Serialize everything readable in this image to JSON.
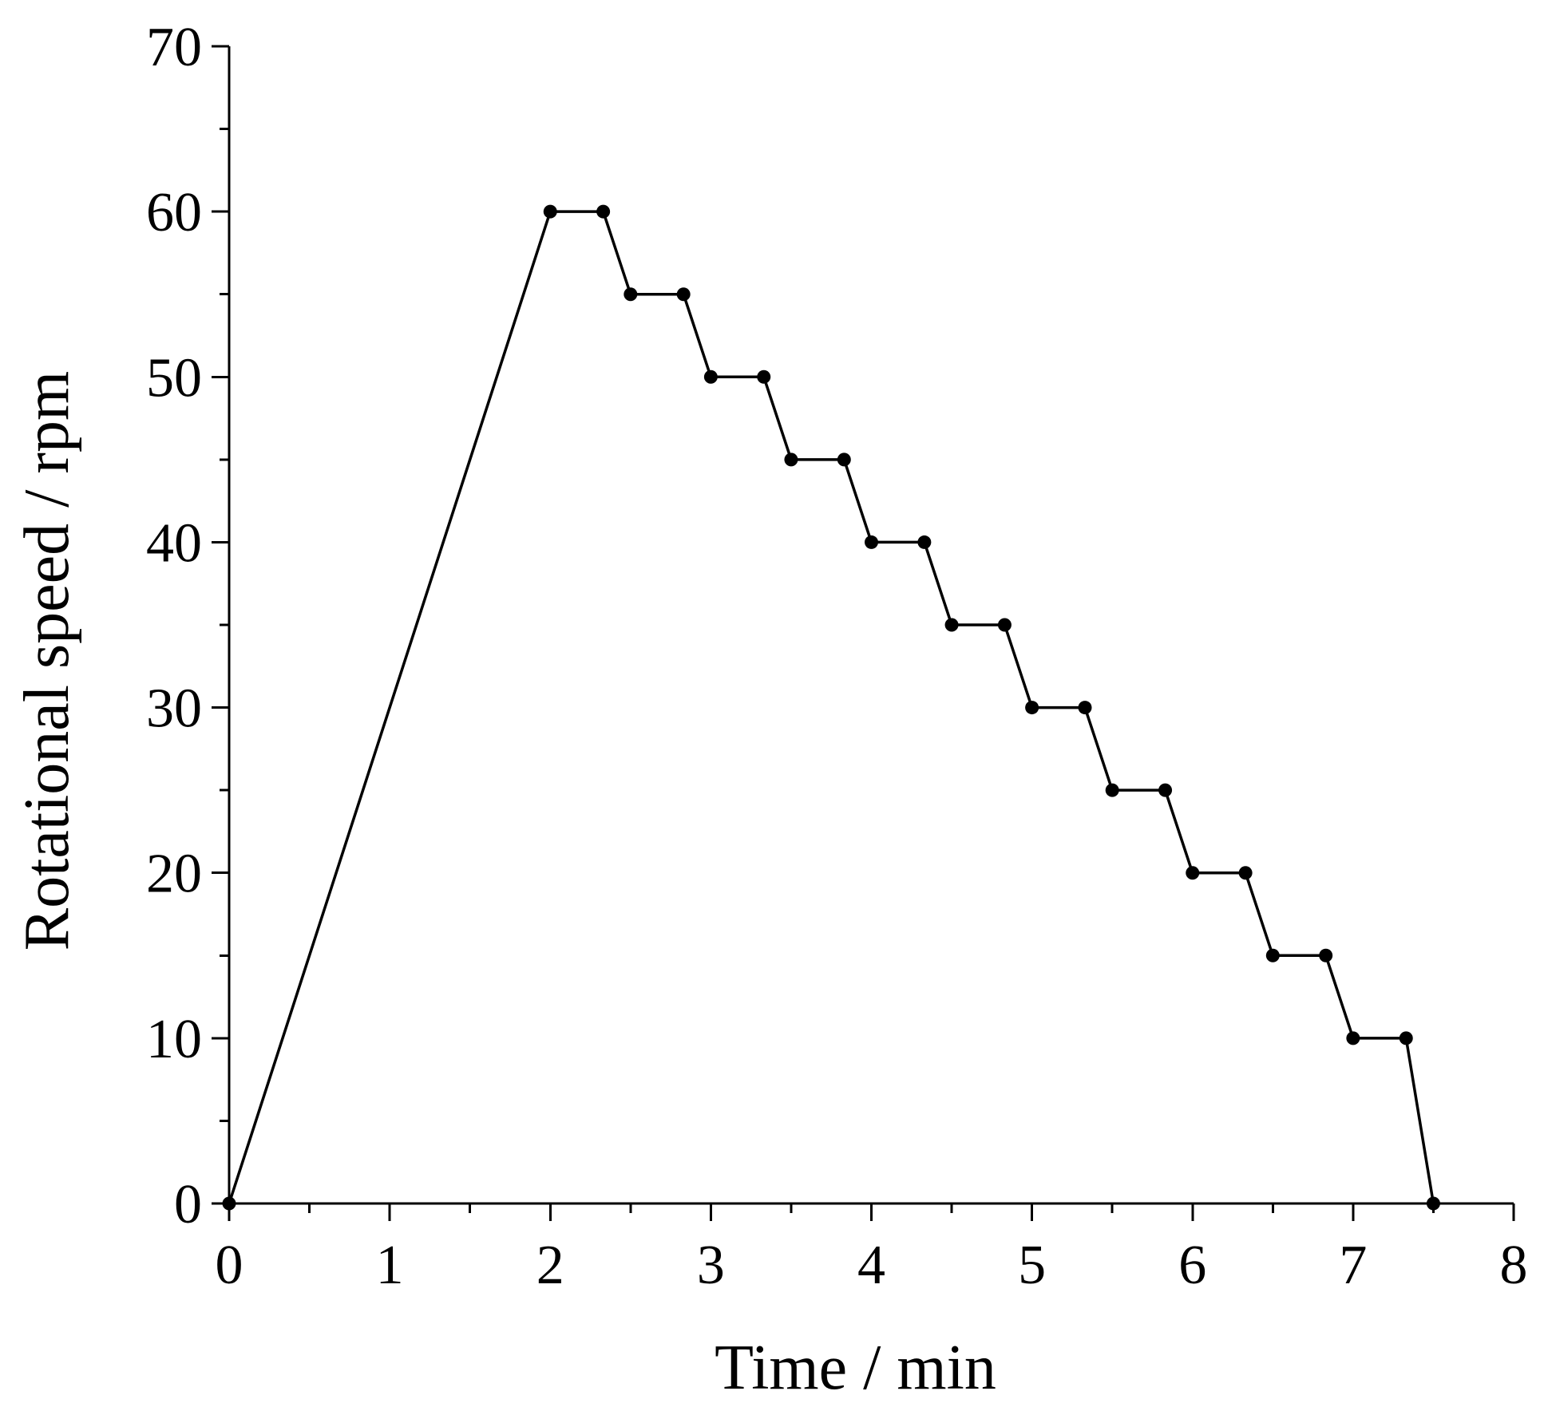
{
  "chart_data": {
    "type": "line",
    "title": "",
    "xlabel": "Time / min",
    "ylabel": "Rotational speed / rpm",
    "xlim": [
      0,
      8
    ],
    "ylim": [
      0,
      70
    ],
    "x_major_ticks": [
      0,
      1,
      2,
      3,
      4,
      5,
      6,
      7,
      8
    ],
    "x_tick_labels": [
      "0",
      "1",
      "2",
      "3",
      "4",
      "5",
      "6",
      "7",
      "8"
    ],
    "x_minor_step": 0.5,
    "y_major_ticks": [
      0,
      10,
      20,
      30,
      40,
      50,
      60,
      70
    ],
    "y_tick_labels": [
      "0",
      "10",
      "20",
      "30",
      "40",
      "50",
      "60",
      "70"
    ],
    "y_minor_step": 5,
    "grid": false,
    "legend": "none",
    "line_color": "#000000",
    "series": [
      {
        "marker": "circle",
        "x": [
          0,
          2,
          2.33,
          2.5,
          2.83,
          3,
          3.33,
          3.5,
          3.83,
          4,
          4.33,
          4.5,
          4.83,
          5,
          5.33,
          5.5,
          5.83,
          6,
          6.33,
          6.5,
          6.83,
          7,
          7.33,
          7.5
        ],
        "y": [
          0,
          60,
          60,
          55,
          55,
          50,
          50,
          45,
          45,
          40,
          40,
          35,
          35,
          30,
          30,
          25,
          25,
          20,
          20,
          15,
          15,
          10,
          10,
          0
        ]
      }
    ]
  }
}
